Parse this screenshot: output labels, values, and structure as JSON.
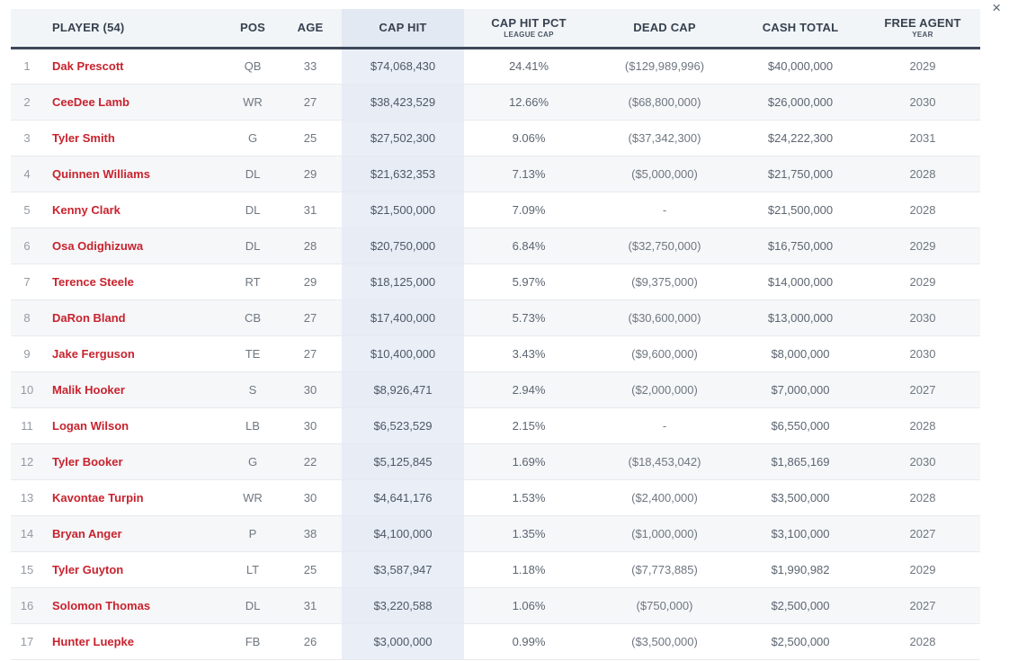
{
  "window": {
    "close_label": "×"
  },
  "table": {
    "header": {
      "rank": "",
      "player": "PLAYER (54)",
      "pos": "POS",
      "age": "AGE",
      "cap_hit": "CAP HIT",
      "cap_hit_pct": "CAP HIT PCT",
      "cap_hit_pct_sub": "LEAGUE CAP",
      "dead_cap": "DEAD CAP",
      "cash_total": "CASH TOTAL",
      "free_agent": "FREE AGENT",
      "free_agent_sub": "YEAR"
    },
    "rows": [
      {
        "rank": "1",
        "player": "Dak Prescott",
        "note_icon": true,
        "pos": "QB",
        "age": "33",
        "cap_hit": "$74,068,430",
        "cap_hit_pct": "24.41%",
        "dead_cap": "($129,989,996)",
        "cash_total": "$40,000,000",
        "free_agent_year": "2029"
      },
      {
        "rank": "2",
        "player": "CeeDee Lamb",
        "note_icon": false,
        "pos": "WR",
        "age": "27",
        "cap_hit": "$38,423,529",
        "cap_hit_pct": "12.66%",
        "dead_cap": "($68,800,000)",
        "cash_total": "$26,000,000",
        "free_agent_year": "2030"
      },
      {
        "rank": "3",
        "player": "Tyler Smith",
        "note_icon": false,
        "pos": "G",
        "age": "25",
        "cap_hit": "$27,502,300",
        "cap_hit_pct": "9.06%",
        "dead_cap": "($37,342,300)",
        "cash_total": "$24,222,300",
        "free_agent_year": "2031"
      },
      {
        "rank": "4",
        "player": "Quinnen Williams",
        "note_icon": false,
        "pos": "DL",
        "age": "29",
        "cap_hit": "$21,632,353",
        "cap_hit_pct": "7.13%",
        "dead_cap": "($5,000,000)",
        "cash_total": "$21,750,000",
        "free_agent_year": "2028"
      },
      {
        "rank": "5",
        "player": "Kenny Clark",
        "note_icon": false,
        "pos": "DL",
        "age": "31",
        "cap_hit": "$21,500,000",
        "cap_hit_pct": "7.09%",
        "dead_cap": "-",
        "cash_total": "$21,500,000",
        "free_agent_year": "2028"
      },
      {
        "rank": "6",
        "player": "Osa Odighizuwa",
        "note_icon": false,
        "pos": "DL",
        "age": "28",
        "cap_hit": "$20,750,000",
        "cap_hit_pct": "6.84%",
        "dead_cap": "($32,750,000)",
        "cash_total": "$16,750,000",
        "free_agent_year": "2029"
      },
      {
        "rank": "7",
        "player": "Terence Steele",
        "note_icon": false,
        "pos": "RT",
        "age": "29",
        "cap_hit": "$18,125,000",
        "cap_hit_pct": "5.97%",
        "dead_cap": "($9,375,000)",
        "cash_total": "$14,000,000",
        "free_agent_year": "2029"
      },
      {
        "rank": "8",
        "player": "DaRon Bland",
        "note_icon": false,
        "pos": "CB",
        "age": "27",
        "cap_hit": "$17,400,000",
        "cap_hit_pct": "5.73%",
        "dead_cap": "($30,600,000)",
        "cash_total": "$13,000,000",
        "free_agent_year": "2030"
      },
      {
        "rank": "9",
        "player": "Jake Ferguson",
        "note_icon": false,
        "pos": "TE",
        "age": "27",
        "cap_hit": "$10,400,000",
        "cap_hit_pct": "3.43%",
        "dead_cap": "($9,600,000)",
        "cash_total": "$8,000,000",
        "free_agent_year": "2030"
      },
      {
        "rank": "10",
        "player": "Malik Hooker",
        "note_icon": false,
        "pos": "S",
        "age": "30",
        "cap_hit": "$8,926,471",
        "cap_hit_pct": "2.94%",
        "dead_cap": "($2,000,000)",
        "cash_total": "$7,000,000",
        "free_agent_year": "2027"
      },
      {
        "rank": "11",
        "player": "Logan Wilson",
        "note_icon": false,
        "pos": "LB",
        "age": "30",
        "cap_hit": "$6,523,529",
        "cap_hit_pct": "2.15%",
        "dead_cap": "-",
        "cash_total": "$6,550,000",
        "free_agent_year": "2028"
      },
      {
        "rank": "12",
        "player": "Tyler Booker",
        "note_icon": false,
        "pos": "G",
        "age": "22",
        "cap_hit": "$5,125,845",
        "cap_hit_pct": "1.69%",
        "dead_cap": "($18,453,042)",
        "cash_total": "$1,865,169",
        "free_agent_year": "2030"
      },
      {
        "rank": "13",
        "player": "Kavontae Turpin",
        "note_icon": false,
        "pos": "WR",
        "age": "30",
        "cap_hit": "$4,641,176",
        "cap_hit_pct": "1.53%",
        "dead_cap": "($2,400,000)",
        "cash_total": "$3,500,000",
        "free_agent_year": "2028"
      },
      {
        "rank": "14",
        "player": "Bryan Anger",
        "note_icon": false,
        "pos": "P",
        "age": "38",
        "cap_hit": "$4,100,000",
        "cap_hit_pct": "1.35%",
        "dead_cap": "($1,000,000)",
        "cash_total": "$3,100,000",
        "free_agent_year": "2027"
      },
      {
        "rank": "15",
        "player": "Tyler Guyton",
        "note_icon": false,
        "pos": "LT",
        "age": "25",
        "cap_hit": "$3,587,947",
        "cap_hit_pct": "1.18%",
        "dead_cap": "($7,773,885)",
        "cash_total": "$1,990,982",
        "free_agent_year": "2029"
      },
      {
        "rank": "16",
        "player": "Solomon Thomas",
        "note_icon": false,
        "pos": "DL",
        "age": "31",
        "cap_hit": "$3,220,588",
        "cap_hit_pct": "1.06%",
        "dead_cap": "($750,000)",
        "cash_total": "$2,500,000",
        "free_agent_year": "2027"
      },
      {
        "rank": "17",
        "player": "Hunter Luepke",
        "note_icon": false,
        "pos": "FB",
        "age": "26",
        "cap_hit": "$3,000,000",
        "cap_hit_pct": "0.99%",
        "dead_cap": "($3,500,000)",
        "cash_total": "$2,500,000",
        "free_agent_year": "2028"
      }
    ],
    "colors": {
      "player_red": "#c8232e",
      "header_bg": "#f2f5f8",
      "cap_hit_header_bg": "#e3e9f2",
      "cap_hit_band_bg": "#e9eef7",
      "stripe_bg": "#f5f7f9",
      "header_border": "#3d4859"
    }
  }
}
